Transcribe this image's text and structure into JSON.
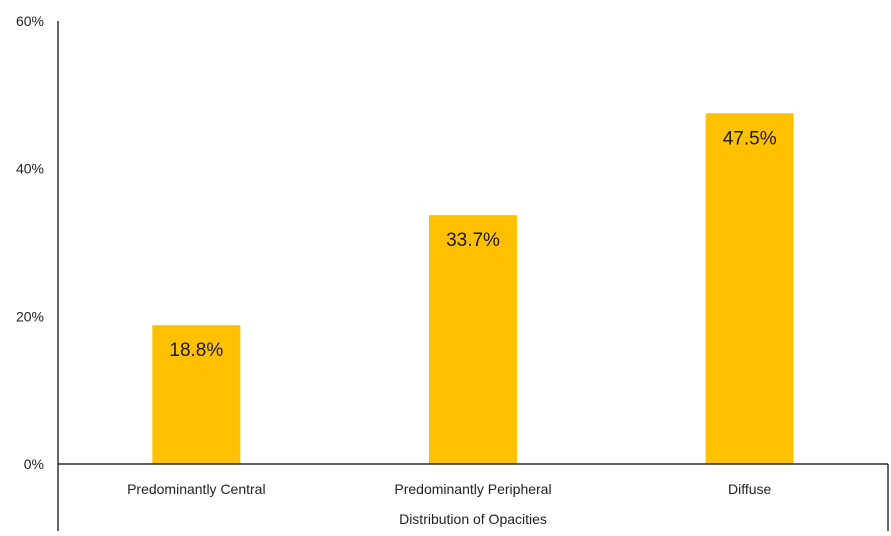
{
  "chart_data": {
    "type": "bar",
    "categories": [
      "Predominantly Central",
      "Predominantly Peripheral",
      "Diffuse"
    ],
    "values": [
      18.8,
      33.7,
      47.5
    ],
    "data_labels": [
      "18.8%",
      "33.7%",
      "47.5%"
    ],
    "title": "",
    "xlabel": "Distribution of Opacities",
    "ylabel": "",
    "ylim": [
      0,
      60
    ],
    "yticks": [
      0,
      20,
      40,
      60
    ],
    "ytick_labels": [
      "0%",
      "20%",
      "40%",
      "60%"
    ],
    "grid": false,
    "legend": "none",
    "bar_color": "#FFC000"
  }
}
